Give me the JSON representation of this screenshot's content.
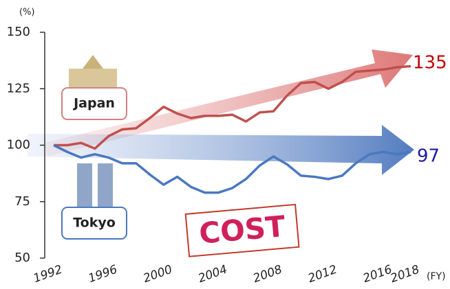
{
  "chart_data": {
    "type": "line",
    "x": [
      1992,
      1993,
      1994,
      1995,
      1996,
      1997,
      1998,
      1999,
      2000,
      2001,
      2002,
      2003,
      2004,
      2005,
      2006,
      2007,
      2008,
      2009,
      2010,
      2011,
      2012,
      2013,
      2014,
      2015,
      2016,
      2017,
      2018
    ],
    "series": [
      {
        "name": "Japan",
        "color": "#c0504d",
        "label_color": "#c00000",
        "values": [
          100,
          100,
          101,
          98.5,
          104,
          107,
          107.5,
          112,
          117,
          114,
          112,
          113,
          113,
          113.5,
          110.5,
          114.5,
          115,
          122,
          127.5,
          128,
          125,
          128,
          132.5,
          133,
          133.5,
          134.5,
          135
        ]
      },
      {
        "name": "Tokyo",
        "color": "#4a78c0",
        "label_color": "#1a1aa8",
        "values": [
          100,
          97,
          94.5,
          96,
          94.5,
          92,
          92,
          87,
          82.5,
          86,
          81.5,
          79,
          79,
          81,
          85,
          91,
          95,
          91.5,
          86.5,
          86,
          85,
          86.5,
          92,
          96,
          97,
          96,
          97
        ]
      }
    ],
    "ylabel": "(%)",
    "xlabel": "(FY)",
    "xlim": [
      1992,
      2018
    ],
    "ylim": [
      50,
      150
    ],
    "xticks": [
      1992,
      1996,
      2000,
      2004,
      2008,
      2012,
      2016,
      2018
    ],
    "yticks": [
      50,
      75,
      100,
      125,
      150
    ],
    "annotations": [
      "COST"
    ]
  }
}
